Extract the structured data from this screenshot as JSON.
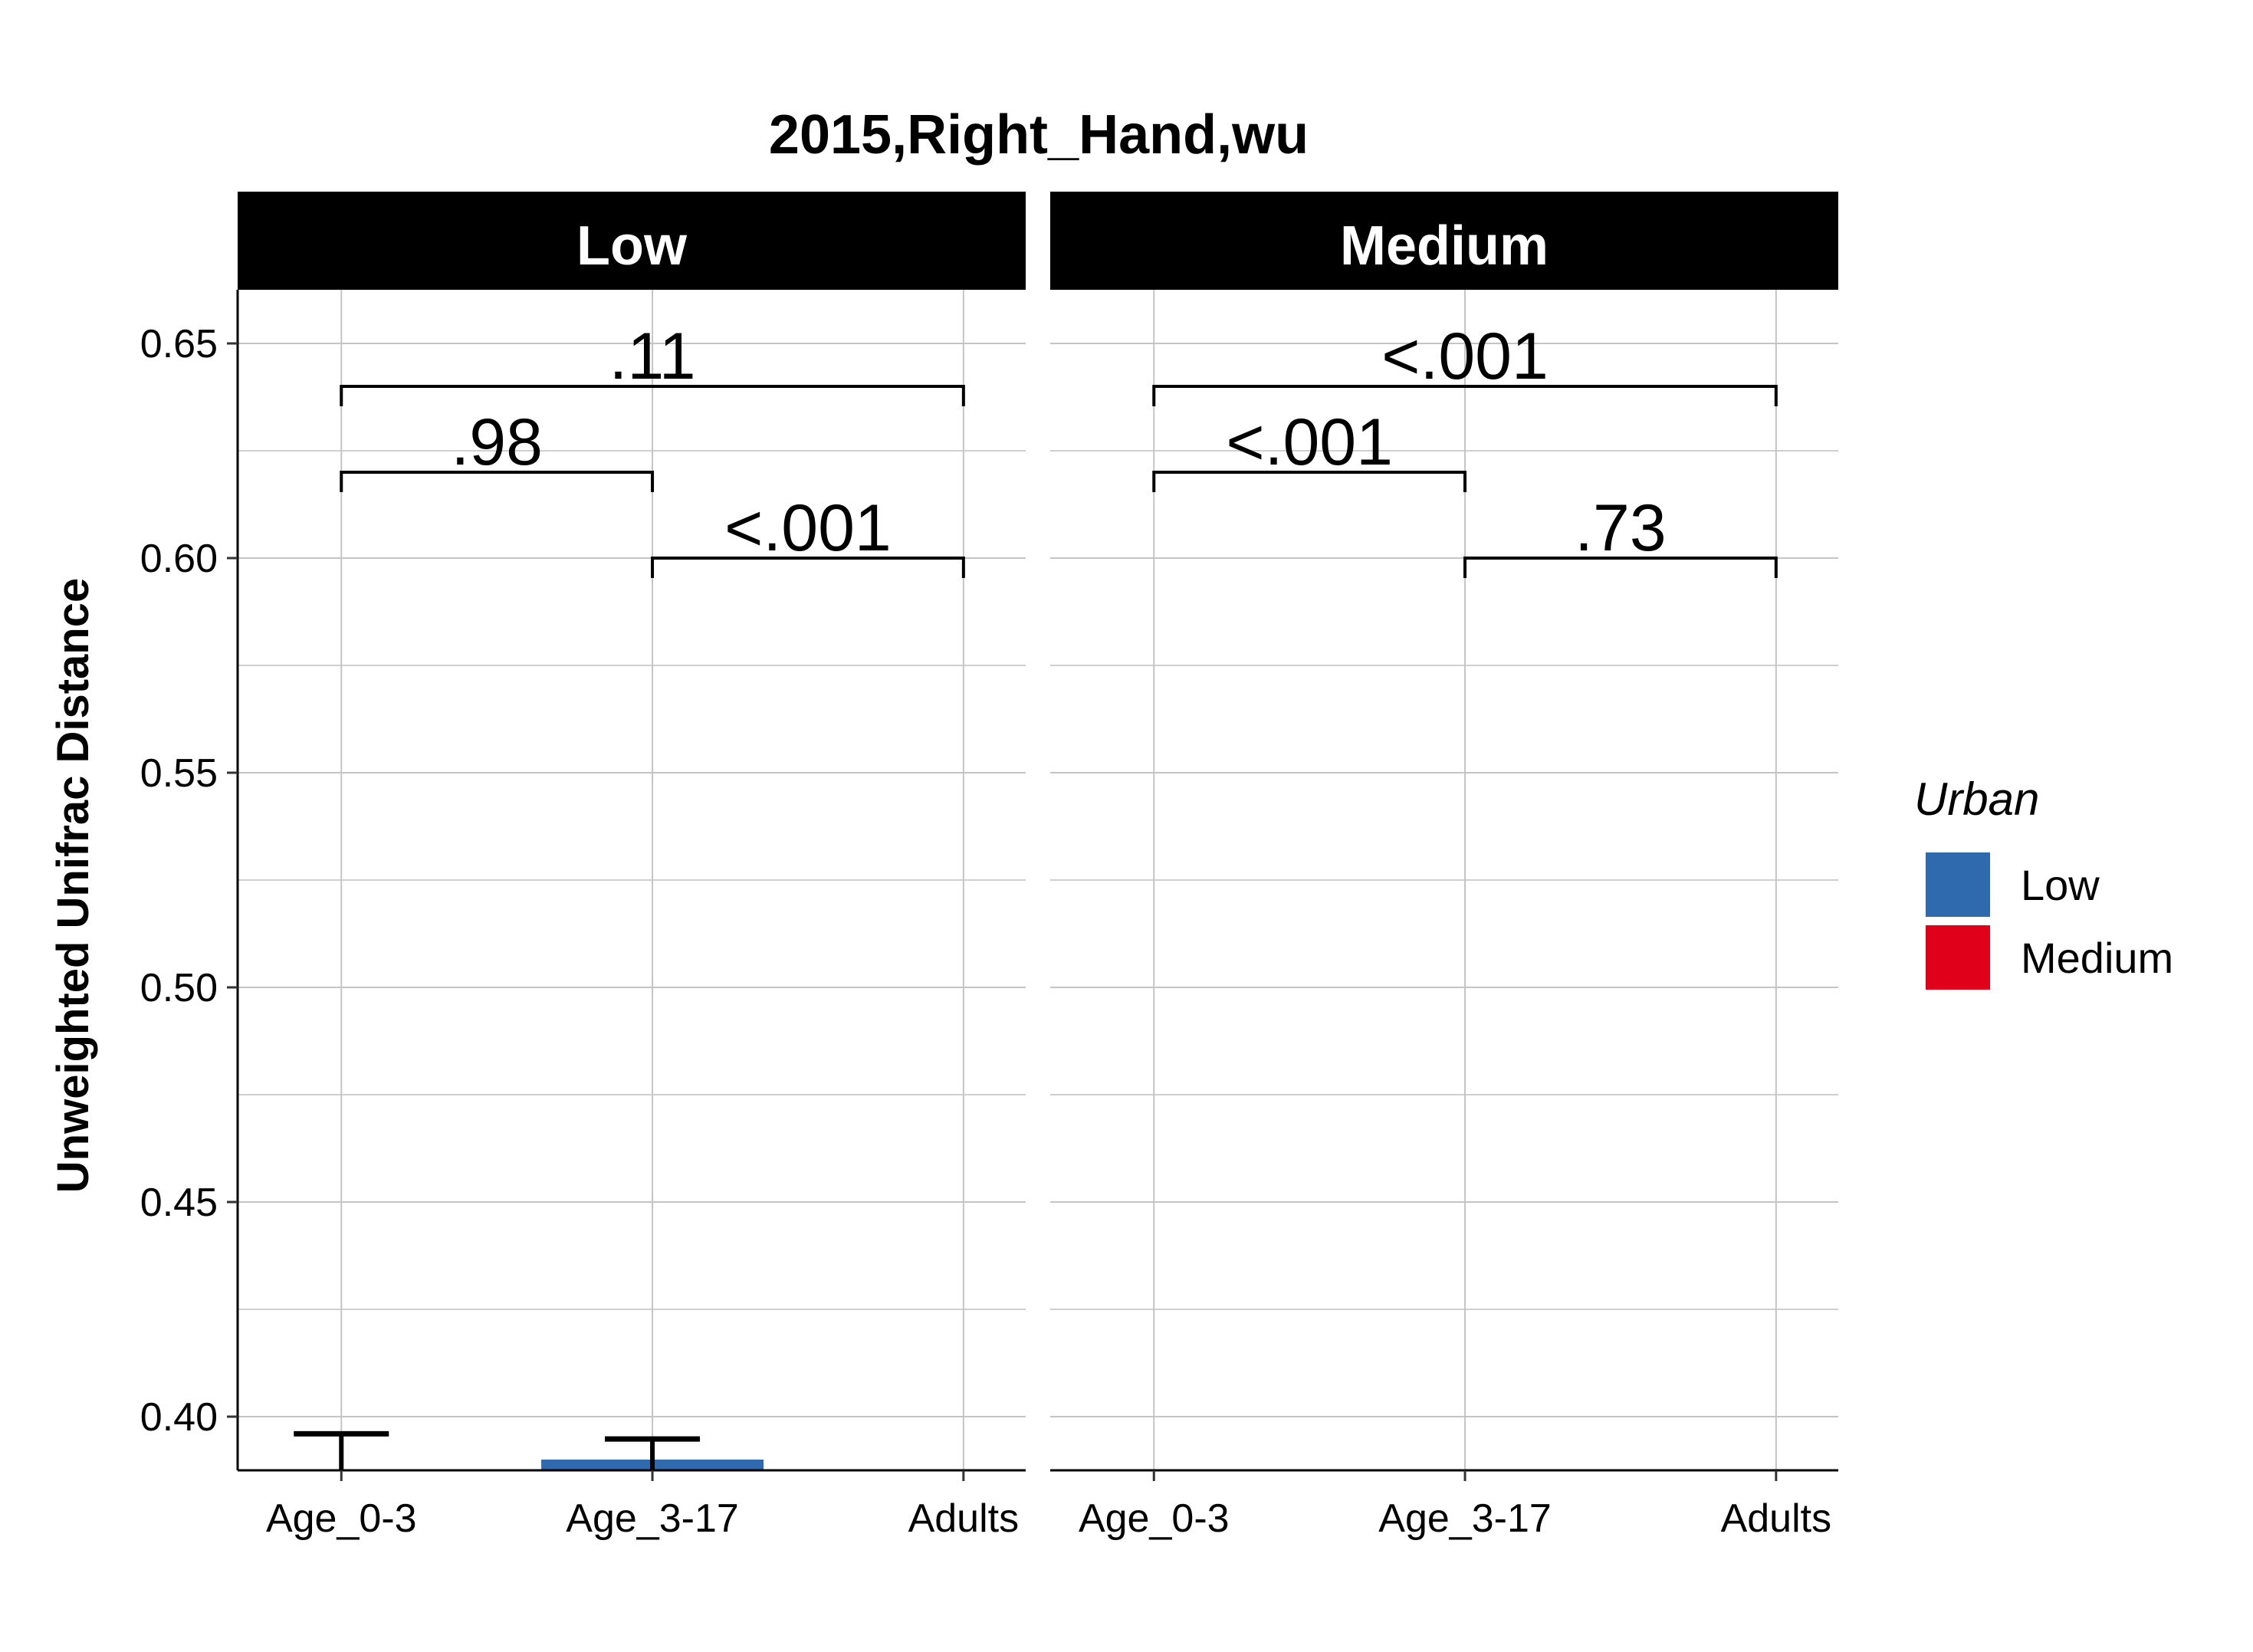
{
  "chart_data": {
    "type": "bar",
    "title": "2015,Right_Hand,wu",
    "xlabel": "",
    "ylabel": "Unweighted Unifrac Distance",
    "ylim": [
      0.3875,
      0.6625
    ],
    "yticks": [
      "0.40",
      "0.45",
      "0.50",
      "0.55",
      "0.60",
      "0.65"
    ],
    "ytick_values": [
      0.4,
      0.45,
      0.5,
      0.55,
      0.6,
      0.65
    ],
    "grid": true,
    "categories": [
      "Age_0-3",
      "Age_3-17",
      "Adults"
    ],
    "legend": {
      "title": "Urban",
      "position": "right",
      "entries": [
        {
          "label": "Low",
          "color": "#2e6aad"
        },
        {
          "label": "Medium",
          "color": "#e1001a"
        }
      ]
    },
    "panels": [
      {
        "strip": "Low",
        "bars": [
          {
            "category": "Age_0-3",
            "value": 0.3875,
            "error_upper": 0.396,
            "color": "#2e6aad"
          },
          {
            "category": "Age_3-17",
            "value": 0.39,
            "error_upper": 0.3948,
            "color": "#2e6aad"
          }
        ],
        "comparisons": [
          {
            "from": "Age_0-3",
            "to": "Adults",
            "y": 0.64,
            "label": ".11"
          },
          {
            "from": "Age_0-3",
            "to": "Age_3-17",
            "y": 0.62,
            "label": ".98"
          },
          {
            "from": "Age_3-17",
            "to": "Adults",
            "y": 0.6,
            "label": "<.001"
          }
        ]
      },
      {
        "strip": "Medium",
        "bars": [],
        "comparisons": [
          {
            "from": "Age_0-3",
            "to": "Adults",
            "y": 0.64,
            "label": "<.001"
          },
          {
            "from": "Age_0-3",
            "to": "Age_3-17",
            "y": 0.62,
            "label": "<.001"
          },
          {
            "from": "Age_3-17",
            "to": "Adults",
            "y": 0.6,
            "label": ".73"
          }
        ]
      }
    ]
  }
}
